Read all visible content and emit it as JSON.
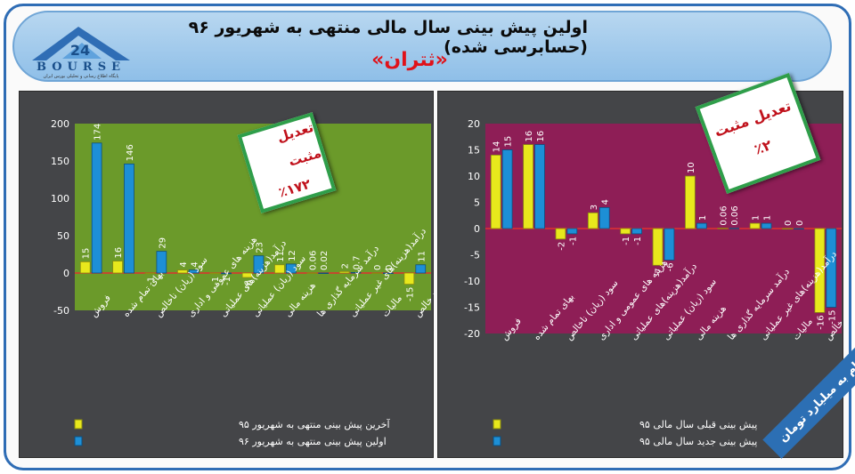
{
  "header": {
    "title": "اولین پیش بینی سال مالی منتهی به شهریور ۹۶ (حسابرسی شده)",
    "subtitle": "«ثتران»",
    "logo_text": "BOURSE",
    "logo_subtext": "پایگاه اطلاع رسانی و تحلیلی بورس ایران"
  },
  "left_badge": {
    "line1": "تعدیل مثبت",
    "line2": "٪۱۷۲"
  },
  "right_badge": {
    "line1": "تعدیل مثبت",
    "line2": "٪۲"
  },
  "units_note": "ارقام به میلیارد تومان",
  "colors": {
    "yellow": "#e8e81c",
    "blue": "#1d8fd6",
    "left_plot_bg": "#6b9a2a",
    "right_plot_bg": "#8e1e56",
    "axis_line": "#e03030"
  },
  "chart_data": [
    {
      "type": "bar",
      "categories": [
        "فروش",
        "بهای تمام شده",
        "سود (زیان) ناخالص",
        "هزینه های عمومی و اداری",
        "درآمد(هزینه)های عملیاتی",
        "سود (زیان) عملیاتی",
        "هزینه مالی",
        "درآمد سرمایه گذاری ها",
        "درآمد(هزینه)های غیر عملیاتی",
        "مالیات",
        "سود خالص"
      ],
      "series": [
        {
          "name": "آخرین پیش بینی منتهی به شهریور ۹۵",
          "values": [
            15,
            16,
            -1,
            4,
            -1,
            -6,
            11,
            0.06,
            2,
            0,
            -15
          ],
          "labels": [
            "15",
            "16",
            "-1",
            "4",
            "-1",
            "-6",
            "11",
            "0.06",
            "2",
            "0",
            "-15"
          ]
        },
        {
          "name": "اولین پیش بینی منتهی به شهریور ۹۶",
          "values": [
            174,
            146,
            29,
            4,
            -1,
            23,
            12,
            0.02,
            0.7,
            0,
            11
          ],
          "labels": [
            "174",
            "146",
            "29",
            "4",
            "-1",
            "23",
            "12",
            "0.02",
            "0.7",
            "0",
            "11"
          ]
        }
      ],
      "yticks": [
        -50,
        0,
        50,
        100,
        150,
        200
      ],
      "ylim": [
        -50,
        200
      ],
      "grid": false,
      "legend": "bottom"
    },
    {
      "type": "bar",
      "categories": [
        "فروش",
        "بهای تمام شده",
        "سود (زیان) ناخالص",
        "هزینه های عمومی و اداری",
        "درآمد(هزینه)های عملیاتی",
        "سود (زیان) عملیاتی",
        "هزینه مالی",
        "درآمد سرمایه گذاری ها",
        "درآمد(هزینه)های غیر عملیاتی",
        "مالیات",
        "سود خالص"
      ],
      "series": [
        {
          "name": "پیش بینی قبلی سال مالی ۹۵",
          "values": [
            14,
            16,
            -2,
            3,
            -1,
            -7,
            10,
            0.06,
            1,
            0,
            -16
          ],
          "labels": [
            "14",
            "16",
            "-2",
            "3",
            "-1",
            "-7",
            "10",
            "0.06",
            "1",
            "0",
            "-16"
          ]
        },
        {
          "name": "پیش بینی جدید سال مالی ۹۵",
          "values": [
            15,
            16,
            -1,
            4,
            -1,
            -6,
            1,
            0.06,
            1,
            0,
            -15
          ],
          "labels": [
            "15",
            "16",
            "-1",
            "4",
            "-1",
            "-6",
            "1",
            "0.06",
            "1",
            "0",
            "-15"
          ]
        }
      ],
      "yticks": [
        -20,
        -15,
        -10,
        -5,
        0,
        5,
        10,
        15,
        20
      ],
      "ylim": [
        -20,
        20
      ],
      "grid": false,
      "legend": "bottom"
    }
  ]
}
